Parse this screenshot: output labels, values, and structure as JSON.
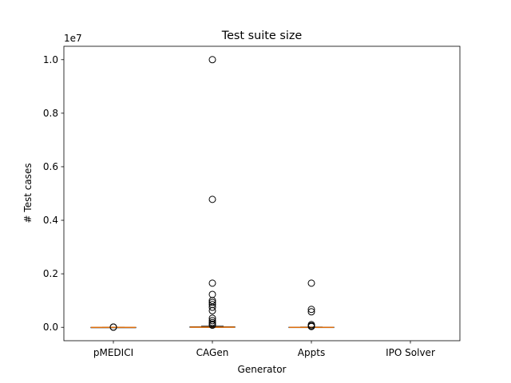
{
  "chart_data": {
    "type": "boxplot",
    "title": "Test suite size",
    "xlabel": "Generator",
    "ylabel": "# Test cases",
    "y_offset_text": "1e7",
    "ylim": [
      -0.05,
      1.05
    ],
    "y_scale_multiplier": 10000000,
    "y_ticks": [
      0.0,
      0.2,
      0.4,
      0.6,
      0.8,
      1.0
    ],
    "y_tick_labels": [
      "0.0",
      "0.2",
      "0.4",
      "0.6",
      "0.8",
      "1.0"
    ],
    "categories": [
      "pMEDICI",
      "CAGen",
      "Appts",
      "IPO Solver"
    ],
    "grid": false,
    "colors": {
      "median": "#ff7f0e",
      "box": "#000000",
      "flier": "#000000"
    },
    "boxes": [
      {
        "name": "pMEDICI",
        "q1": 0.0,
        "median": 0.0,
        "q3": 0.0,
        "whisker_low": 0.0,
        "whisker_high": 0.0,
        "fliers": [
          0.0005,
          0.001
        ]
      },
      {
        "name": "CAGen",
        "q1": 0.0,
        "median": 0.0005,
        "q3": 0.002,
        "whisker_low": 0.0,
        "whisker_high": 0.004,
        "fliers": [
          1.0,
          0.478,
          0.165,
          0.123,
          0.1,
          0.093,
          0.085,
          0.075,
          0.062,
          0.034,
          0.025,
          0.018,
          0.012,
          0.008
        ]
      },
      {
        "name": "Appts",
        "q1": 0.0,
        "median": 0.0,
        "q3": 0.0005,
        "whisker_low": 0.0,
        "whisker_high": 0.001,
        "fliers": [
          0.165,
          0.067,
          0.058,
          0.01,
          0.006,
          0.003
        ]
      },
      {
        "name": "IPO Solver",
        "q1": null,
        "median": null,
        "q3": null,
        "whisker_low": null,
        "whisker_high": null,
        "fliers": []
      }
    ]
  }
}
